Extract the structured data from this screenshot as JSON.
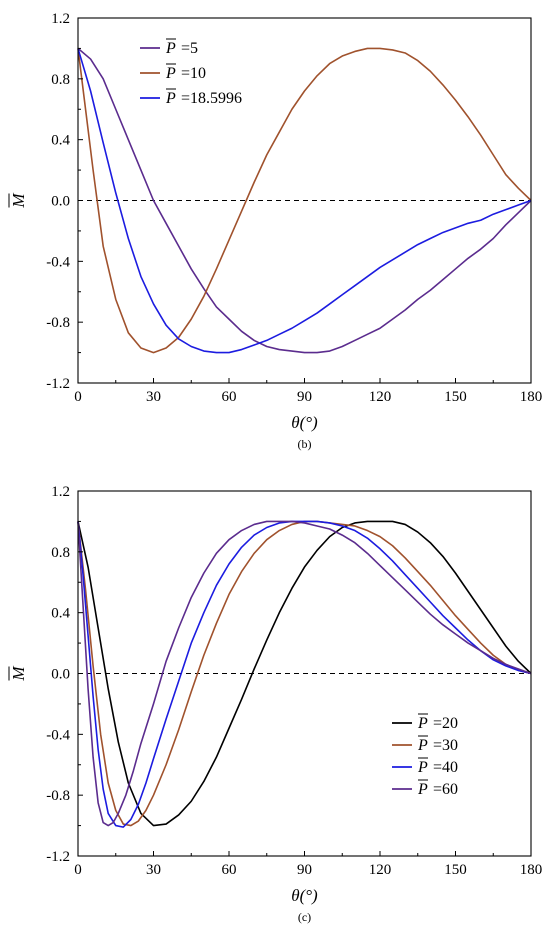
{
  "chart_data": [
    {
      "panel": "(b)",
      "type": "line",
      "xlabel": "θ(°)",
      "ylabel": "M",
      "ylabel_overline": true,
      "xlim": [
        0,
        180
      ],
      "ylim": [
        -1.2,
        1.2
      ],
      "xticks": [
        0,
        30,
        60,
        90,
        120,
        150,
        180
      ],
      "yticks": [
        -1.2,
        -0.8,
        -0.4,
        0.0,
        0.4,
        0.8,
        1.2
      ],
      "xtick_labels": [
        "0",
        "30",
        "60",
        "90",
        "120",
        "150",
        "180"
      ],
      "ytick_labels": [
        "-1.2",
        "-0.8",
        "-0.4",
        "0.0",
        "0.4",
        "0.8",
        "1.2"
      ],
      "reference_line": {
        "y": 0,
        "style": "dashed",
        "color": "#000000"
      },
      "legend_position": "top-left",
      "series": [
        {
          "name": "P =5",
          "legend_var": "P",
          "legend_value": "=5",
          "color": "#5B2C8E",
          "x": [
            0,
            5,
            10,
            15,
            20,
            25,
            30,
            35,
            40,
            45,
            50,
            55,
            60,
            65,
            70,
            75,
            80,
            85,
            90,
            95,
            100,
            105,
            110,
            115,
            120,
            125,
            130,
            135,
            140,
            145,
            150,
            155,
            160,
            165,
            170,
            175,
            180
          ],
          "y": [
            1.0,
            0.93,
            0.8,
            0.6,
            0.4,
            0.2,
            0.0,
            -0.15,
            -0.3,
            -0.45,
            -0.58,
            -0.7,
            -0.78,
            -0.86,
            -0.92,
            -0.96,
            -0.98,
            -0.99,
            -1.0,
            -1.0,
            -0.99,
            -0.96,
            -0.92,
            -0.88,
            -0.84,
            -0.78,
            -0.72,
            -0.65,
            -0.59,
            -0.52,
            -0.45,
            -0.38,
            -0.32,
            -0.25,
            -0.16,
            -0.08,
            0.0
          ]
        },
        {
          "name": "P =10",
          "legend_var": "P",
          "legend_value": "=10",
          "color": "#A0522D",
          "x": [
            0,
            3,
            6,
            10,
            15,
            20,
            25,
            30,
            35,
            40,
            45,
            50,
            55,
            60,
            65,
            70,
            75,
            80,
            85,
            90,
            95,
            100,
            105,
            110,
            115,
            120,
            125,
            130,
            135,
            140,
            145,
            150,
            155,
            160,
            165,
            170,
            175,
            180
          ],
          "y": [
            1.0,
            0.6,
            0.2,
            -0.3,
            -0.65,
            -0.87,
            -0.97,
            -1.0,
            -0.97,
            -0.9,
            -0.78,
            -0.63,
            -0.45,
            -0.26,
            -0.07,
            0.12,
            0.3,
            0.45,
            0.6,
            0.72,
            0.82,
            0.9,
            0.95,
            0.98,
            1.0,
            1.0,
            0.99,
            0.97,
            0.92,
            0.85,
            0.76,
            0.66,
            0.55,
            0.43,
            0.3,
            0.17,
            0.08,
            0.0
          ]
        },
        {
          "name": "P =18.5996",
          "legend_var": "P",
          "legend_value": "=18.5996",
          "color": "#1C1CE0",
          "x": [
            0,
            5,
            10,
            15,
            20,
            25,
            30,
            35,
            40,
            45,
            50,
            55,
            60,
            65,
            70,
            75,
            80,
            85,
            90,
            95,
            100,
            105,
            110,
            115,
            120,
            125,
            130,
            135,
            140,
            145,
            150,
            155,
            160,
            165,
            170,
            175,
            180
          ],
          "y": [
            1.0,
            0.72,
            0.38,
            0.05,
            -0.25,
            -0.5,
            -0.68,
            -0.82,
            -0.91,
            -0.96,
            -0.99,
            -1.0,
            -1.0,
            -0.98,
            -0.95,
            -0.92,
            -0.88,
            -0.84,
            -0.79,
            -0.74,
            -0.68,
            -0.62,
            -0.56,
            -0.5,
            -0.44,
            -0.39,
            -0.34,
            -0.29,
            -0.25,
            -0.21,
            -0.18,
            -0.15,
            -0.13,
            -0.09,
            -0.06,
            -0.03,
            0.0
          ]
        }
      ]
    },
    {
      "panel": "(c)",
      "type": "line",
      "xlabel": "θ(°)",
      "ylabel": "M",
      "ylabel_overline": true,
      "xlim": [
        0,
        180
      ],
      "ylim": [
        -1.2,
        1.2
      ],
      "xticks": [
        0,
        30,
        60,
        90,
        120,
        150,
        180
      ],
      "yticks": [
        -1.2,
        -0.8,
        -0.4,
        0.0,
        0.4,
        0.8,
        1.2
      ],
      "xtick_labels": [
        "0",
        "30",
        "60",
        "90",
        "120",
        "150",
        "180"
      ],
      "ytick_labels": [
        "-1.2",
        "-0.8",
        "-0.4",
        "0.0",
        "0.4",
        "0.8",
        "1.2"
      ],
      "reference_line": {
        "y": 0,
        "style": "dashed",
        "color": "#000000"
      },
      "legend_position": "bottom-right",
      "series": [
        {
          "name": "P =20",
          "legend_var": "P",
          "legend_value": "=20",
          "color": "#000000",
          "x": [
            0,
            4,
            8,
            12,
            16,
            20,
            25,
            30,
            35,
            40,
            45,
            50,
            55,
            60,
            65,
            70,
            75,
            80,
            85,
            90,
            95,
            100,
            105,
            110,
            115,
            120,
            125,
            130,
            135,
            140,
            145,
            150,
            155,
            160,
            165,
            170,
            175,
            180
          ],
          "y": [
            1.0,
            0.7,
            0.3,
            -0.1,
            -0.45,
            -0.72,
            -0.92,
            -1.0,
            -0.99,
            -0.93,
            -0.84,
            -0.71,
            -0.55,
            -0.36,
            -0.17,
            0.03,
            0.22,
            0.4,
            0.56,
            0.7,
            0.81,
            0.9,
            0.96,
            0.99,
            1.0,
            1.0,
            1.0,
            0.98,
            0.93,
            0.86,
            0.77,
            0.66,
            0.54,
            0.42,
            0.3,
            0.18,
            0.08,
            0.0
          ]
        },
        {
          "name": "P =30",
          "legend_var": "P",
          "legend_value": "=30",
          "color": "#A0522D",
          "x": [
            0,
            3,
            6,
            9,
            12,
            15,
            18,
            21,
            24,
            27,
            30,
            35,
            40,
            45,
            50,
            55,
            60,
            65,
            70,
            75,
            80,
            85,
            90,
            95,
            100,
            105,
            110,
            115,
            120,
            125,
            130,
            135,
            140,
            145,
            150,
            155,
            160,
            165,
            170,
            175,
            180
          ],
          "y": [
            1.0,
            0.55,
            0.05,
            -0.4,
            -0.72,
            -0.9,
            -0.99,
            -1.0,
            -0.97,
            -0.9,
            -0.8,
            -0.6,
            -0.37,
            -0.12,
            0.12,
            0.33,
            0.52,
            0.67,
            0.79,
            0.88,
            0.94,
            0.98,
            1.0,
            1.0,
            0.99,
            0.98,
            0.97,
            0.94,
            0.9,
            0.84,
            0.76,
            0.67,
            0.58,
            0.48,
            0.38,
            0.29,
            0.2,
            0.12,
            0.06,
            0.02,
            0.0
          ]
        },
        {
          "name": "P =40",
          "legend_var": "P",
          "legend_value": "=40",
          "color": "#1C1CE0",
          "x": [
            0,
            2,
            4,
            6,
            8,
            10,
            12,
            15,
            18,
            21,
            24,
            27,
            30,
            35,
            40,
            45,
            50,
            55,
            60,
            65,
            70,
            75,
            80,
            85,
            90,
            95,
            100,
            105,
            110,
            115,
            120,
            125,
            130,
            135,
            140,
            145,
            150,
            155,
            160,
            165,
            170,
            175,
            180
          ],
          "y": [
            1.0,
            0.65,
            0.25,
            -0.15,
            -0.5,
            -0.76,
            -0.92,
            -1.0,
            -1.01,
            -0.96,
            -0.86,
            -0.72,
            -0.56,
            -0.3,
            -0.05,
            0.2,
            0.4,
            0.58,
            0.72,
            0.83,
            0.91,
            0.96,
            0.99,
            1.0,
            1.0,
            1.0,
            0.99,
            0.97,
            0.94,
            0.89,
            0.82,
            0.74,
            0.65,
            0.56,
            0.47,
            0.38,
            0.3,
            0.22,
            0.15,
            0.09,
            0.05,
            0.02,
            0.0
          ]
        },
        {
          "name": "P =60",
          "legend_var": "P",
          "legend_value": "=60",
          "color": "#5B2C8E",
          "x": [
            0,
            2,
            4,
            6,
            8,
            10,
            12,
            14,
            16,
            19,
            22,
            25,
            30,
            35,
            40,
            45,
            50,
            55,
            60,
            65,
            70,
            75,
            80,
            85,
            90,
            95,
            100,
            105,
            110,
            115,
            120,
            125,
            130,
            135,
            140,
            145,
            150,
            155,
            160,
            165,
            170,
            175,
            180
          ],
          "y": [
            1.0,
            0.45,
            -0.1,
            -0.55,
            -0.85,
            -0.98,
            -1.0,
            -0.98,
            -0.92,
            -0.8,
            -0.64,
            -0.46,
            -0.2,
            0.08,
            0.3,
            0.5,
            0.66,
            0.79,
            0.88,
            0.94,
            0.98,
            1.0,
            1.0,
            1.0,
            0.99,
            0.97,
            0.95,
            0.91,
            0.86,
            0.79,
            0.71,
            0.63,
            0.55,
            0.47,
            0.39,
            0.32,
            0.26,
            0.2,
            0.15,
            0.1,
            0.06,
            0.03,
            0.0
          ]
        }
      ]
    }
  ]
}
